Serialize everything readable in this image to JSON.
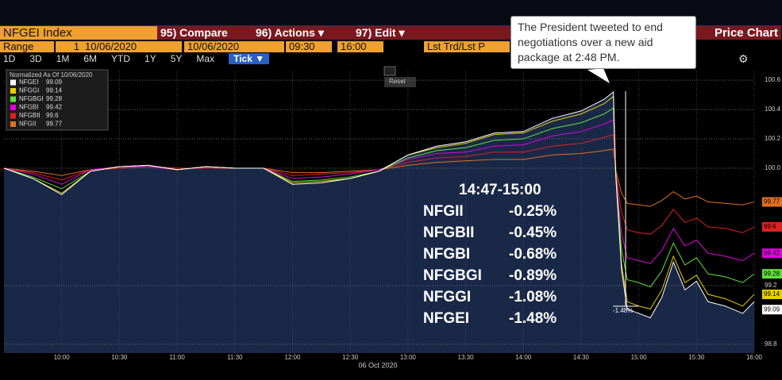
{
  "toolbar": {
    "ticker": "NFGEI Index",
    "compare": "95) Compare",
    "actions": "96) Actions ▾",
    "edit": "97) Edit ▾",
    "view": "Price Chart",
    "range": "Range",
    "range_n": "1",
    "start_date": "10/06/2020",
    "end_date": "10/06/2020",
    "start_time": "09:30",
    "end_time": "16:00",
    "field": "Lst Trd/Lst P",
    "periods": [
      "1D",
      "3D",
      "1M",
      "6M",
      "YTD",
      "1Y",
      "5Y",
      "Max"
    ],
    "tick": "Tick ▼",
    "reset": "Reset"
  },
  "chart_data": {
    "type": "line",
    "legend_title": "Normalized As Of 10/06/2020",
    "x_label": "06 Oct 2020",
    "x": [
      9.5,
      9.75,
      10,
      10.25,
      10.5,
      10.75,
      11,
      11.25,
      11.5,
      11.75,
      12,
      12.25,
      12.5,
      12.75,
      13,
      13.25,
      13.5,
      13.75,
      14,
      14.25,
      14.5,
      14.7,
      14.78,
      14.8,
      14.85,
      14.9,
      15,
      15.1,
      15.2,
      15.3,
      15.4,
      15.5,
      15.6,
      15.75,
      15.9,
      16
    ],
    "xlim": [
      9.5,
      16
    ],
    "xticks": [
      {
        "value": 10,
        "label": "10:00"
      },
      {
        "value": 10.5,
        "label": "10:30"
      },
      {
        "value": 11,
        "label": "11:00"
      },
      {
        "value": 11.5,
        "label": "11:30"
      },
      {
        "value": 12,
        "label": "12:00"
      },
      {
        "value": 12.5,
        "label": "12:30"
      },
      {
        "value": 13,
        "label": "13:00"
      },
      {
        "value": 13.5,
        "label": "13:30"
      },
      {
        "value": 14,
        "label": "14:00"
      },
      {
        "value": 14.5,
        "label": "14:30"
      },
      {
        "value": 15,
        "label": "15:00"
      },
      {
        "value": 15.5,
        "label": "15:30"
      },
      {
        "value": 16,
        "label": "16:00"
      }
    ],
    "ylim": [
      98.74,
      100.66
    ],
    "yticks": [
      98.8,
      99.2,
      {
        "value": 100,
        "label": "100.0"
      },
      100.2,
      100.4,
      100.6
    ],
    "grid": true,
    "series": [
      {
        "name": "NFGEI",
        "color": "#ffffff",
        "values": [
          100,
          99.93,
          99.82,
          99.98,
          100.01,
          100.02,
          99.99,
          100.01,
          100,
          100,
          99.89,
          99.9,
          99.93,
          99.98,
          100.09,
          100.15,
          100.18,
          100.24,
          100.25,
          100.34,
          100.39,
          100.47,
          100.52,
          99.96,
          99.31,
          99.04,
          99.01,
          98.98,
          99.12,
          99.36,
          99.17,
          99.23,
          99.09,
          99.06,
          99.01,
          99.09
        ]
      },
      {
        "name": "NFGGI",
        "color": "#e8d000",
        "values": [
          100,
          99.93,
          99.83,
          99.98,
          100.01,
          100.02,
          99.99,
          100.01,
          100,
          100,
          99.9,
          99.91,
          99.93,
          99.98,
          100.09,
          100.14,
          100.17,
          100.23,
          100.24,
          100.32,
          100.37,
          100.44,
          100.49,
          99.96,
          99.35,
          99.09,
          99.06,
          99.04,
          99.17,
          99.4,
          99.22,
          99.27,
          99.14,
          99.11,
          99.06,
          99.14
        ]
      },
      {
        "name": "NFGBGI",
        "color": "#5fe03a",
        "values": [
          100,
          99.94,
          99.86,
          99.98,
          100.01,
          100.02,
          99.99,
          100.01,
          100,
          100,
          99.91,
          99.92,
          99.94,
          99.98,
          100.07,
          100.12,
          100.14,
          100.19,
          100.2,
          100.27,
          100.31,
          100.37,
          100.41,
          99.97,
          99.45,
          99.24,
          99.22,
          99.19,
          99.3,
          99.49,
          99.34,
          99.39,
          99.28,
          99.26,
          99.22,
          99.28
        ]
      },
      {
        "name": "NFGBI",
        "color": "#e000e0",
        "values": [
          100,
          99.96,
          99.89,
          99.99,
          100.01,
          100.01,
          99.99,
          100.01,
          100,
          100,
          99.93,
          99.94,
          99.96,
          99.99,
          100.06,
          100.1,
          100.11,
          100.15,
          100.16,
          100.22,
          100.25,
          100.3,
          100.33,
          99.97,
          99.56,
          99.39,
          99.37,
          99.35,
          99.44,
          99.59,
          99.47,
          99.51,
          99.42,
          99.4,
          99.37,
          99.42
        ]
      },
      {
        "name": "NFGBII",
        "color": "#e02020",
        "values": [
          100,
          99.97,
          99.92,
          99.99,
          100,
          100.01,
          100,
          100,
          100,
          100,
          99.95,
          99.96,
          99.97,
          99.99,
          100.04,
          100.07,
          100.08,
          100.11,
          100.11,
          100.15,
          100.17,
          100.21,
          100.23,
          99.98,
          99.7,
          99.58,
          99.56,
          99.55,
          99.61,
          99.72,
          99.63,
          99.66,
          99.6,
          99.59,
          99.56,
          99.6
        ]
      },
      {
        "name": "NFGII",
        "color": "#e07020",
        "values": [
          100,
          99.98,
          99.95,
          99.99,
          100,
          100.01,
          100,
          100,
          100,
          100,
          99.97,
          99.97,
          99.98,
          99.99,
          100.02,
          100.04,
          100.05,
          100.06,
          100.06,
          100.09,
          100.1,
          100.12,
          100.13,
          99.99,
          99.83,
          99.76,
          99.75,
          99.74,
          99.78,
          99.84,
          99.79,
          99.81,
          99.77,
          99.76,
          99.75,
          99.77
        ]
      }
    ],
    "annotation": "The President tweeted to end negotiations over a new aid package at 2:48 PM.",
    "overlay": {
      "title": "14:47-15:00",
      "rows": [
        [
          "NFGII",
          "-0.25%"
        ],
        [
          "NFGBII",
          "-0.45%"
        ],
        [
          "NFGBI",
          "-0.68%"
        ],
        [
          "NFGBGI",
          "-0.89%"
        ],
        [
          "NFGGI",
          "-1.08%"
        ],
        [
          "NFGEI",
          "-1.48%"
        ]
      ]
    }
  }
}
